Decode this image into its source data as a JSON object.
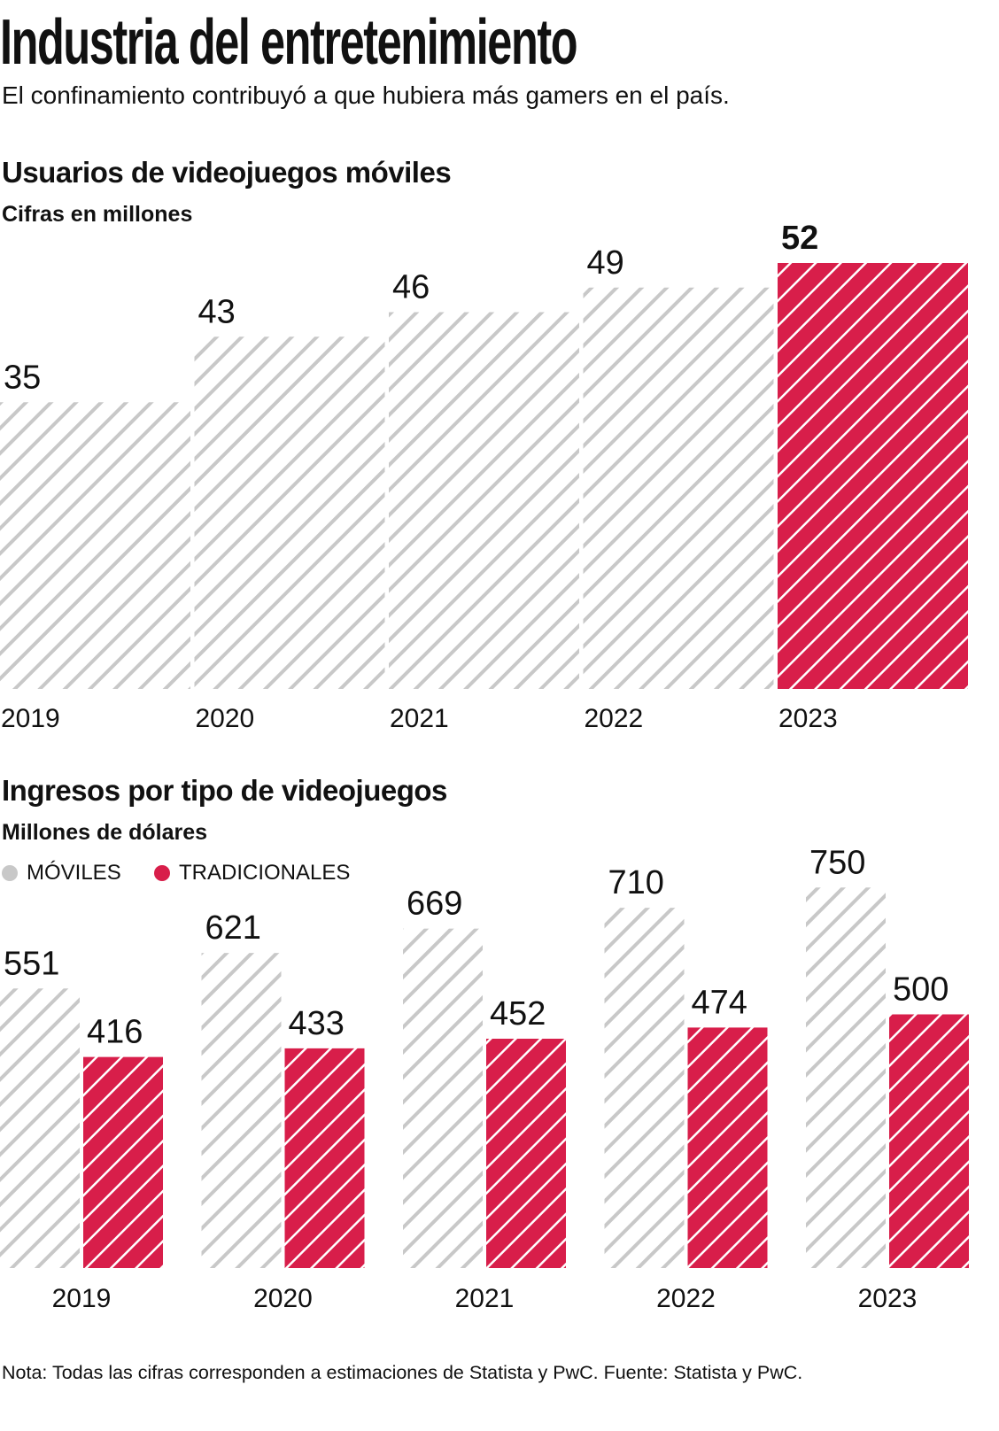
{
  "title": "Industria del entretenimiento",
  "subtitle": "El confinamiento contribuyó a que hubiera más gamers en el país.",
  "colors": {
    "gray": "#c8c8c8",
    "red": "#d81e4a"
  },
  "chart_data": [
    {
      "type": "bar",
      "title": "Usuarios de videojuegos móviles",
      "subtitle": "Cifras en millones",
      "categories": [
        "2019",
        "2020",
        "2021",
        "2022",
        "2023"
      ],
      "values": [
        35,
        43,
        46,
        49,
        52
      ],
      "highlight": "2023",
      "pattern": "diagonal-hatch"
    },
    {
      "type": "bar",
      "title": "Ingresos por tipo de videojuegos",
      "subtitle": "Millones de dólares",
      "categories": [
        "2019",
        "2020",
        "2021",
        "2022",
        "2023"
      ],
      "legend_position": "top-left",
      "series": [
        {
          "name": "MÓVILES",
          "color": "#c8c8c8",
          "values": [
            551,
            621,
            669,
            710,
            750
          ]
        },
        {
          "name": "TRADICIONALES",
          "color": "#d81e4a",
          "values": [
            416,
            433,
            452,
            474,
            500
          ]
        }
      ]
    }
  ],
  "note": "Nota: Todas las cifras corresponden a estimaciones de Statista y PwC. Fuente: Statista y PwC."
}
